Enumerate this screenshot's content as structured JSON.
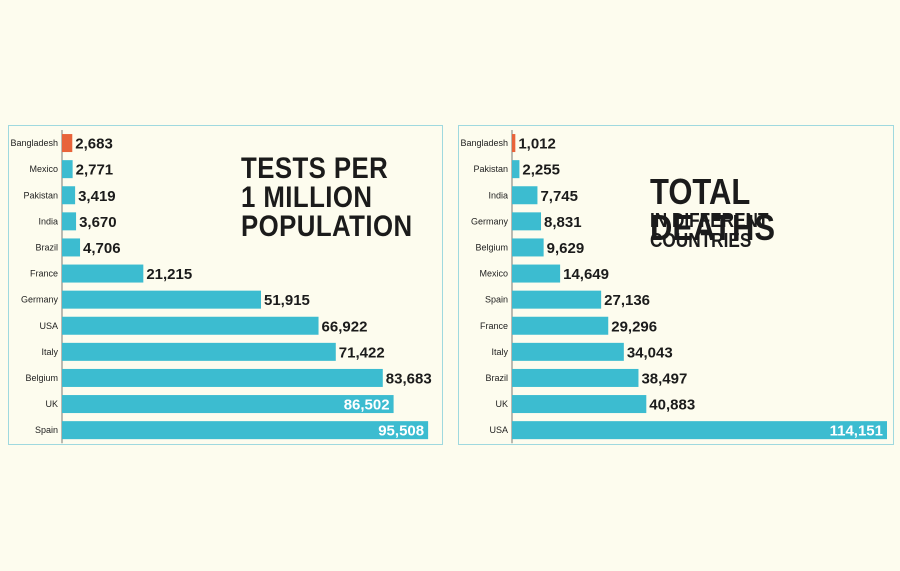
{
  "colors": {
    "background": "#fdfcee",
    "bar": "#3cbcd0",
    "highlight_bar": "#e8633a",
    "panel_border": "#9fd9df",
    "text_dark": "#1b1b1b",
    "text_on_bar": "#ffffff"
  },
  "chart_data": [
    {
      "type": "bar",
      "orientation": "horizontal",
      "title": "TESTS PER\n1 MILLION\nPOPULATION",
      "categories": [
        "Bangladesh",
        "Mexico",
        "Pakistan",
        "India",
        "Brazil",
        "France",
        "Germany",
        "USA",
        "Italy",
        "Belgium",
        "UK",
        "Spain"
      ],
      "values": [
        2683,
        2771,
        3419,
        3670,
        4706,
        21215,
        51915,
        66922,
        71422,
        83683,
        86502,
        95508
      ],
      "value_labels": [
        "2,683",
        "2,771",
        "3,419",
        "3,670",
        "4,706",
        "21,215",
        "51,915",
        "66,922",
        "71,422",
        "83,683",
        "86,502",
        "95,508"
      ],
      "highlight": "Bangladesh",
      "xlim": [
        0,
        102000
      ]
    },
    {
      "type": "bar",
      "orientation": "horizontal",
      "title": "TOTAL DEATHS",
      "subtitle": "IN DIFFERENT COUNTRIES",
      "categories": [
        "Bangladesh",
        "Pakistan",
        "India",
        "Germany",
        "Belgium",
        "Mexico",
        "Spain",
        "France",
        "Italy",
        "Brazil",
        "UK",
        "USA"
      ],
      "values": [
        1012,
        2255,
        7745,
        8831,
        9629,
        14649,
        27136,
        29296,
        34043,
        38497,
        40883,
        114151
      ],
      "value_labels": [
        "1,012",
        "2,255",
        "7,745",
        "8,831",
        "9,629",
        "14,649",
        "27,136",
        "29,296",
        "34,043",
        "38,497",
        "40,883",
        "114,151"
      ],
      "highlight": "Bangladesh",
      "xlim": [
        0,
        114151
      ]
    }
  ]
}
